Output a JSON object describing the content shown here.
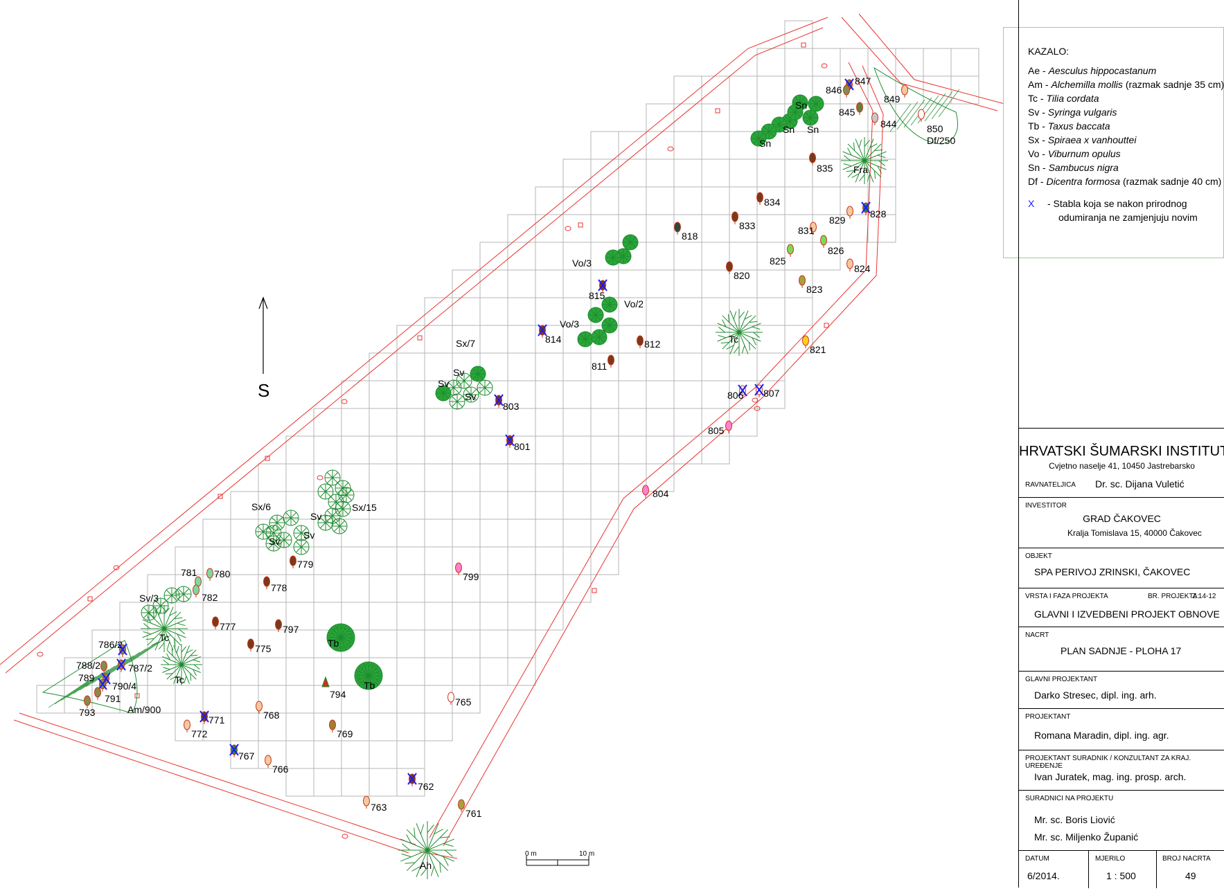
{
  "north_label": "S",
  "scale_bar": {
    "start": "0 m",
    "end": "10 m"
  },
  "legend": {
    "title": "KAZALO:",
    "items": [
      {
        "code": "Ae",
        "species": "Aesculus hippocastanum",
        "note": ""
      },
      {
        "code": "Am",
        "species": "Alchemilla mollis",
        "note": "(razmak sadnje 35 cm)"
      },
      {
        "code": "Tc",
        "species": "Tilia cordata",
        "note": ""
      },
      {
        "code": "Sv",
        "species": "Syringa vulgaris",
        "note": ""
      },
      {
        "code": "Tb",
        "species": "Taxus baccata",
        "note": ""
      },
      {
        "code": "Sx",
        "species": "Spiraea x vanhouttei",
        "note": ""
      },
      {
        "code": "Vo",
        "species": "Viburnum opulus",
        "note": ""
      },
      {
        "code": "Sn",
        "species": "Sambucus nigra",
        "note": ""
      },
      {
        "code": "Df",
        "species": "Dicentra formosa",
        "note": "(razmak sadnje 40 cm)"
      }
    ],
    "x_symbol": "X",
    "x_text_1": "- Stabla koja se nakon prirodnog",
    "x_text_2": "odumiranja ne zamjenjuju novim"
  },
  "title_block": {
    "institute": "HRVATSKI ŠUMARSKI INSTITUT",
    "address": "Cvjetno naselje 41, 10450 Jastrebarsko",
    "director_label": "RAVNATELJICA",
    "director": "Dr. sc. Dijana Vuletić",
    "investor_label": "INVESTITOR",
    "investor": "GRAD ČAKOVEC",
    "investor_address": "Kralja Tomislava 15, 40000 Čakovec",
    "object_label": "OBJEKT",
    "object": "SPA PERIVOJ ZRINSKI, ČAKOVEC",
    "type_label": "VRSTA I FAZA PROJEKTA",
    "project_no_label": "BR. PROJEKTA:",
    "project_no": "Z 14-12",
    "type": "GLAVNI I IZVEDBENI PROJEKT OBNOVE",
    "drawing_label": "NACRT",
    "drawing": "PLAN SADNJE  - PLOHA 17",
    "chief_label": "GLAVNI PROJEKTANT",
    "chief": "Darko Stresec, dipl. ing. arh.",
    "designer_label": "PROJEKTANT",
    "designer": "Romana Maradin, dipl. ing. agr.",
    "consultant_label": "PROJEKTANT SURADNIK / KONZULTANT ZA KRAJ. UREĐENJE",
    "consultant": "Ivan Juratek, mag. ing. prosp. arch.",
    "collab_label": "SURADNICI NA PROJEKTU",
    "collab_1": "Mr. sc. Boris Liović",
    "collab_2": "Mr. sc. Miljenko Županić",
    "date_label": "DATUM",
    "date": "6/2014.",
    "scale_label": "MJERILO",
    "scale": "1 : 500",
    "sheet_label": "BROJ NACRTA",
    "sheet": "49"
  },
  "colors": {
    "grid": "#b4b4b4",
    "paths": "#e8332f",
    "plants": "#1e8c2e",
    "x_mark": "#1a1aff"
  },
  "area_labels": [
    "Sn",
    "Sn",
    "Sn",
    "Sn",
    "Fra",
    "Df/250",
    "Vo/3",
    "Vo/2",
    "Vo/3",
    "Tc",
    "Sx/7",
    "Sv",
    "Sv",
    "Sv",
    "Sx/6",
    "Sv",
    "Sv",
    "Sv",
    "Sx/15",
    "Sv/3",
    "Tc",
    "Tc",
    "Tb",
    "Tb",
    "Ah",
    "Am/900"
  ],
  "trees": [
    {
      "n": "847",
      "c": "#7a7a3a",
      "x": true
    },
    {
      "n": "846",
      "c": "#8a8a4a",
      "x": false
    },
    {
      "n": "845",
      "c": "#6b7b3a",
      "x": false
    },
    {
      "n": "844",
      "c": "#c8c8c8",
      "x": false
    },
    {
      "n": "849",
      "c": "#f4c9a0",
      "x": false
    },
    {
      "n": "850",
      "c": "#ffffff",
      "x": false
    },
    {
      "n": "835",
      "c": "#7a3a1a",
      "x": false
    },
    {
      "n": "834",
      "c": "#7a3a1a",
      "x": false
    },
    {
      "n": "833",
      "c": "#7a3a1a",
      "x": false
    },
    {
      "n": "829",
      "c": "#f4c9a0",
      "x": false
    },
    {
      "n": "828",
      "c": "#2a8a4a",
      "x": true
    },
    {
      "n": "831",
      "c": "#f4c9a0",
      "x": false
    },
    {
      "n": "818",
      "c": "#2a4a3a",
      "x": false
    },
    {
      "n": "825",
      "c": "#7ed957",
      "x": false
    },
    {
      "n": "826",
      "c": "#7ed957",
      "x": false
    },
    {
      "n": "820",
      "c": "#7a3a1a",
      "x": false
    },
    {
      "n": "824",
      "c": "#f4c9a0",
      "x": false
    },
    {
      "n": "823",
      "c": "#a8a040",
      "x": false
    },
    {
      "n": "815",
      "c": "#7a3a1a",
      "x": true
    },
    {
      "n": "814",
      "c": "#7a3a1a",
      "x": true
    },
    {
      "n": "812",
      "c": "#7a3a1a",
      "x": false
    },
    {
      "n": "811",
      "c": "#7a3a1a",
      "x": false
    },
    {
      "n": "821",
      "c": "#ffd21a",
      "x": false
    },
    {
      "n": "806",
      "c": "#ffffff",
      "x": true
    },
    {
      "n": "807",
      "c": "#ffffff",
      "x": true
    },
    {
      "n": "803",
      "c": "#7a3a1a",
      "x": true
    },
    {
      "n": "805",
      "c": "#ff80d0",
      "x": false
    },
    {
      "n": "801",
      "c": "#7a3a1a",
      "x": true
    },
    {
      "n": "804",
      "c": "#ff80d0",
      "x": false
    },
    {
      "n": "779",
      "c": "#7a3a1a",
      "x": false
    },
    {
      "n": "799",
      "c": "#ff80d0",
      "x": false
    },
    {
      "n": "780",
      "c": "#7ed9a0",
      "x": false
    },
    {
      "n": "781",
      "c": "#7ed9a0",
      "x": false
    },
    {
      "n": "782",
      "c": "#7ed9a0",
      "x": false
    },
    {
      "n": "778",
      "c": "#7a3a1a",
      "x": false
    },
    {
      "n": "777",
      "c": "#7a3a1a",
      "x": false
    },
    {
      "n": "797",
      "c": "#7a3a1a",
      "x": false
    },
    {
      "n": "775",
      "c": "#7a3a1a",
      "x": false
    },
    {
      "n": "786/2",
      "c": "#8a8a4a",
      "x": true
    },
    {
      "n": "788/2",
      "c": "#8a8a4a",
      "x": false
    },
    {
      "n": "787/2",
      "c": "#8a8a4a",
      "x": true
    },
    {
      "n": "789",
      "c": "#8a8a4a",
      "x": true
    },
    {
      "n": "790/4",
      "c": "#8a8a4a",
      "x": true
    },
    {
      "n": "791",
      "c": "#8a8a4a",
      "x": false
    },
    {
      "n": "793",
      "c": "#8a8a4a",
      "x": false
    },
    {
      "n": "794",
      "c": "#c8321a",
      "x": false
    },
    {
      "n": "765",
      "c": "#ffffff",
      "x": false
    },
    {
      "n": "768",
      "c": "#f4c9a0",
      "x": false
    },
    {
      "n": "771",
      "c": "#7a3a1a",
      "x": true
    },
    {
      "n": "772",
      "c": "#f4c9a0",
      "x": false
    },
    {
      "n": "769",
      "c": "#a08030",
      "x": false
    },
    {
      "n": "767",
      "c": "#2a8a4a",
      "x": true
    },
    {
      "n": "766",
      "c": "#f4c9a0",
      "x": false
    },
    {
      "n": "762",
      "c": "#7a3a1a",
      "x": true
    },
    {
      "n": "763",
      "c": "#f4c9a0",
      "x": false
    },
    {
      "n": "761",
      "c": "#a8a040",
      "x": false
    }
  ]
}
